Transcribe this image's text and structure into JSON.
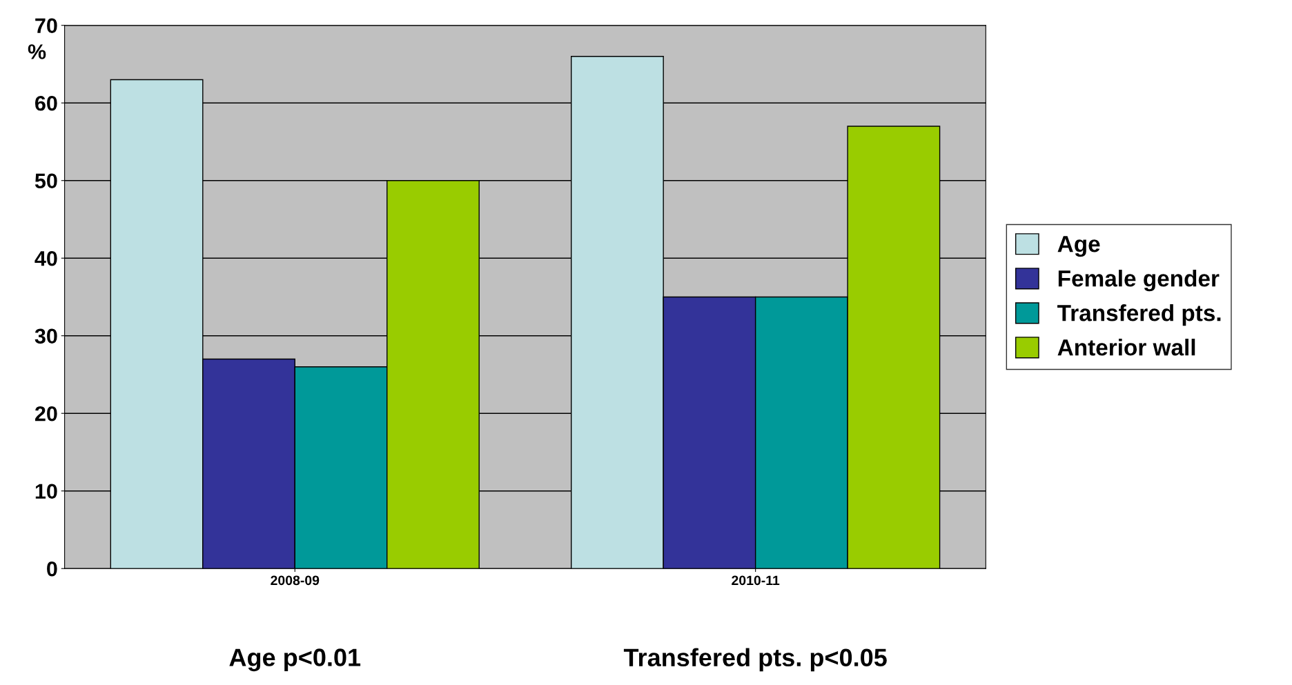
{
  "chart_data": {
    "type": "bar",
    "ylabel": "%",
    "categories": [
      "2008-09",
      "2010-11"
    ],
    "series": [
      {
        "name": "Age",
        "color": "#bde0e3",
        "values": [
          63,
          66
        ]
      },
      {
        "name": "Female gender",
        "color": "#333399",
        "values": [
          27,
          35
        ]
      },
      {
        "name": "Transfered pts.",
        "color": "#009999",
        "values": [
          26,
          35
        ]
      },
      {
        "name": "Anterior wall",
        "color": "#99cc00",
        "values": [
          50,
          57
        ]
      }
    ],
    "ylim": [
      0,
      70
    ],
    "yticks": [
      0,
      10,
      20,
      30,
      40,
      50,
      60,
      70
    ],
    "grid": "y",
    "legend": "right",
    "annotations": [
      "Age p<0.01",
      "Transfered pts. p<0.05"
    ]
  }
}
